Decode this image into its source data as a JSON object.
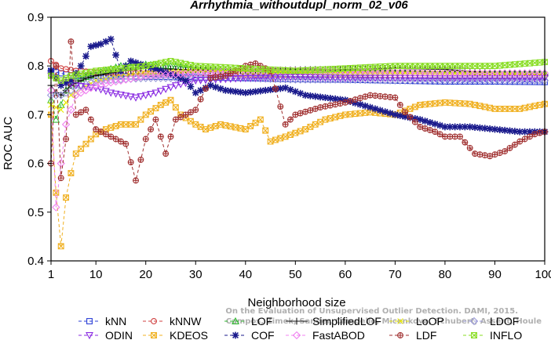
{
  "chart_data": {
    "type": "line",
    "title": "Arrhythmia_withoutdupl_norm_02_v06",
    "xlabel": "Neighborhood size",
    "ylabel": "ROC AUC",
    "xlim": [
      1,
      100
    ],
    "ylim": [
      0.4,
      0.9
    ],
    "xticks": [
      1,
      10,
      20,
      30,
      40,
      50,
      60,
      70,
      80,
      90,
      100
    ],
    "yticks": [
      0.4,
      0.5,
      0.6,
      0.7,
      0.8,
      0.9
    ],
    "grid": false,
    "legend_position": "bottom",
    "watermark": [
      "Campos, Zimek, Sander, Campello, Micenkova, Schubert, Assent, Houle",
      "On the Evaluation of Unsupervised Outlier Detection. DAMI, 2015."
    ],
    "series": [
      {
        "name": "kNN",
        "color": "#2b3fd6",
        "marker": "square",
        "dash": "4,3",
        "keypoints": [
          [
            1,
            0.79
          ],
          [
            3,
            0.785
          ],
          [
            5,
            0.78
          ],
          [
            10,
            0.78
          ],
          [
            20,
            0.778
          ],
          [
            30,
            0.777
          ],
          [
            40,
            0.775
          ],
          [
            50,
            0.773
          ],
          [
            60,
            0.772
          ],
          [
            70,
            0.77
          ],
          [
            80,
            0.768
          ],
          [
            90,
            0.768
          ],
          [
            100,
            0.767
          ]
        ]
      },
      {
        "name": "kNNW",
        "color": "#d04040",
        "marker": "circle",
        "dash": "4,3",
        "keypoints": [
          [
            1,
            0.81
          ],
          [
            3,
            0.795
          ],
          [
            6,
            0.79
          ],
          [
            10,
            0.787
          ],
          [
            20,
            0.785
          ],
          [
            30,
            0.785
          ],
          [
            40,
            0.783
          ],
          [
            50,
            0.782
          ],
          [
            60,
            0.782
          ],
          [
            70,
            0.781
          ],
          [
            80,
            0.78
          ],
          [
            90,
            0.78
          ],
          [
            100,
            0.78
          ]
        ]
      },
      {
        "name": "LOF",
        "color": "#33bb33",
        "marker": "triangle",
        "dash": "4,3",
        "keypoints": [
          [
            1,
            0.73
          ],
          [
            2,
            0.69
          ],
          [
            3,
            0.72
          ],
          [
            4,
            0.75
          ],
          [
            6,
            0.77
          ],
          [
            10,
            0.785
          ],
          [
            15,
            0.8
          ],
          [
            20,
            0.803
          ],
          [
            25,
            0.8
          ],
          [
            30,
            0.795
          ],
          [
            40,
            0.79
          ],
          [
            50,
            0.79
          ],
          [
            60,
            0.788
          ],
          [
            70,
            0.787
          ],
          [
            80,
            0.785
          ],
          [
            90,
            0.785
          ],
          [
            100,
            0.785
          ]
        ]
      },
      {
        "name": "SimplifiedLOF",
        "color": "#111111",
        "marker": "plus",
        "dash": "none",
        "keypoints": [
          [
            1,
            0.76
          ],
          [
            2,
            0.745
          ],
          [
            3,
            0.74
          ],
          [
            5,
            0.76
          ],
          [
            8,
            0.775
          ],
          [
            10,
            0.78
          ],
          [
            15,
            0.79
          ],
          [
            20,
            0.795
          ],
          [
            30,
            0.792
          ],
          [
            40,
            0.79
          ],
          [
            50,
            0.792
          ],
          [
            60,
            0.793
          ],
          [
            70,
            0.795
          ],
          [
            80,
            0.793
          ],
          [
            90,
            0.785
          ],
          [
            100,
            0.782
          ]
        ]
      },
      {
        "name": "LoOP",
        "color": "#e8e800",
        "marker": "x",
        "dash": "4,3",
        "keypoints": [
          [
            1,
            0.72
          ],
          [
            3,
            0.71
          ],
          [
            5,
            0.74
          ],
          [
            10,
            0.77
          ],
          [
            20,
            0.785
          ],
          [
            30,
            0.79
          ],
          [
            40,
            0.79
          ],
          [
            50,
            0.788
          ],
          [
            60,
            0.787
          ],
          [
            70,
            0.786
          ],
          [
            80,
            0.785
          ],
          [
            90,
            0.784
          ],
          [
            100,
            0.783
          ]
        ]
      },
      {
        "name": "LDOF",
        "color": "#9a9ad8",
        "marker": "diamond",
        "dash": "4,3",
        "keypoints": [
          [
            1,
            0.74
          ],
          [
            3,
            0.74
          ],
          [
            5,
            0.75
          ],
          [
            10,
            0.77
          ],
          [
            20,
            0.775
          ],
          [
            30,
            0.775
          ],
          [
            40,
            0.775
          ],
          [
            50,
            0.772
          ],
          [
            60,
            0.772
          ],
          [
            70,
            0.77
          ],
          [
            80,
            0.77
          ],
          [
            90,
            0.77
          ],
          [
            100,
            0.77
          ]
        ]
      },
      {
        "name": "ODIN",
        "color": "#8a2be2",
        "marker": "invtriangle",
        "dash": "4,3",
        "keypoints": [
          [
            1,
            0.78
          ],
          [
            3,
            0.77
          ],
          [
            6,
            0.76
          ],
          [
            10,
            0.755
          ],
          [
            13,
            0.745
          ],
          [
            18,
            0.735
          ],
          [
            22,
            0.745
          ],
          [
            26,
            0.76
          ],
          [
            30,
            0.77
          ],
          [
            40,
            0.775
          ],
          [
            50,
            0.777
          ],
          [
            60,
            0.775
          ],
          [
            70,
            0.775
          ],
          [
            80,
            0.775
          ],
          [
            90,
            0.775
          ],
          [
            100,
            0.775
          ]
        ]
      },
      {
        "name": "KDEOS",
        "color": "#f0b020",
        "marker": "squarex",
        "dash": "4,3",
        "keypoints": [
          [
            1,
            0.7
          ],
          [
            2,
            0.54
          ],
          [
            3,
            0.43
          ],
          [
            4,
            0.53
          ],
          [
            5,
            0.58
          ],
          [
            6,
            0.62
          ],
          [
            8,
            0.64
          ],
          [
            10,
            0.66
          ],
          [
            12,
            0.67
          ],
          [
            15,
            0.68
          ],
          [
            18,
            0.68
          ],
          [
            20,
            0.7
          ],
          [
            23,
            0.72
          ],
          [
            25,
            0.73
          ],
          [
            27,
            0.7
          ],
          [
            30,
            0.68
          ],
          [
            32,
            0.67
          ],
          [
            35,
            0.68
          ],
          [
            40,
            0.67
          ],
          [
            43,
            0.69
          ],
          [
            45,
            0.645
          ],
          [
            48,
            0.655
          ],
          [
            52,
            0.67
          ],
          [
            56,
            0.69
          ],
          [
            60,
            0.7
          ],
          [
            65,
            0.705
          ],
          [
            70,
            0.7
          ],
          [
            75,
            0.72
          ],
          [
            80,
            0.725
          ],
          [
            85,
            0.722
          ],
          [
            90,
            0.712
          ],
          [
            95,
            0.712
          ],
          [
            100,
            0.722
          ]
        ]
      },
      {
        "name": "COF",
        "color": "#1a1a8c",
        "marker": "star",
        "dash": "4,3",
        "keypoints": [
          [
            1,
            0.79
          ],
          [
            3,
            0.76
          ],
          [
            5,
            0.77
          ],
          [
            7,
            0.8
          ],
          [
            9,
            0.84
          ],
          [
            11,
            0.845
          ],
          [
            13,
            0.855
          ],
          [
            15,
            0.79
          ],
          [
            17,
            0.81
          ],
          [
            20,
            0.8
          ],
          [
            23,
            0.79
          ],
          [
            26,
            0.78
          ],
          [
            28,
            0.77
          ],
          [
            30,
            0.745
          ],
          [
            33,
            0.76
          ],
          [
            36,
            0.75
          ],
          [
            40,
            0.745
          ],
          [
            44,
            0.75
          ],
          [
            48,
            0.755
          ],
          [
            52,
            0.74
          ],
          [
            56,
            0.735
          ],
          [
            60,
            0.73
          ],
          [
            65,
            0.715
          ],
          [
            70,
            0.7
          ],
          [
            75,
            0.69
          ],
          [
            80,
            0.675
          ],
          [
            85,
            0.675
          ],
          [
            90,
            0.67
          ],
          [
            95,
            0.665
          ],
          [
            100,
            0.665
          ]
        ]
      },
      {
        "name": "FastABOD",
        "color": "#f080f0",
        "marker": "diamond",
        "dash": "4,3",
        "keypoints": [
          [
            1,
            0.75
          ],
          [
            2,
            0.51
          ],
          [
            3,
            0.6
          ],
          [
            4,
            0.68
          ],
          [
            6,
            0.74
          ],
          [
            10,
            0.76
          ],
          [
            15,
            0.77
          ],
          [
            20,
            0.78
          ],
          [
            30,
            0.785
          ],
          [
            40,
            0.79
          ],
          [
            50,
            0.79
          ],
          [
            60,
            0.788
          ],
          [
            70,
            0.787
          ],
          [
            80,
            0.785
          ],
          [
            90,
            0.785
          ],
          [
            100,
            0.785
          ]
        ]
      },
      {
        "name": "LDF",
        "color": "#a03030",
        "marker": "circleplus",
        "dash": "4,3",
        "keypoints": [
          [
            1,
            0.6
          ],
          [
            2,
            0.8
          ],
          [
            3,
            0.57
          ],
          [
            4,
            0.65
          ],
          [
            5,
            0.85
          ],
          [
            6,
            0.7
          ],
          [
            8,
            0.71
          ],
          [
            10,
            0.67
          ],
          [
            12,
            0.66
          ],
          [
            14,
            0.65
          ],
          [
            16,
            0.64
          ],
          [
            18,
            0.565
          ],
          [
            20,
            0.65
          ],
          [
            22,
            0.69
          ],
          [
            24,
            0.62
          ],
          [
            26,
            0.69
          ],
          [
            28,
            0.7
          ],
          [
            30,
            0.71
          ],
          [
            33,
            0.775
          ],
          [
            36,
            0.78
          ],
          [
            40,
            0.8
          ],
          [
            42,
            0.805
          ],
          [
            45,
            0.79
          ],
          [
            48,
            0.68
          ],
          [
            50,
            0.7
          ],
          [
            55,
            0.715
          ],
          [
            60,
            0.725
          ],
          [
            65,
            0.74
          ],
          [
            70,
            0.735
          ],
          [
            72,
            0.705
          ],
          [
            75,
            0.675
          ],
          [
            78,
            0.665
          ],
          [
            80,
            0.655
          ],
          [
            83,
            0.655
          ],
          [
            86,
            0.62
          ],
          [
            89,
            0.615
          ],
          [
            92,
            0.625
          ],
          [
            95,
            0.645
          ],
          [
            98,
            0.66
          ],
          [
            100,
            0.665
          ]
        ]
      },
      {
        "name": "INFLO",
        "color": "#88dd22",
        "marker": "squarex",
        "dash": "4,3",
        "keypoints": [
          [
            1,
            0.78
          ],
          [
            3,
            0.77
          ],
          [
            5,
            0.78
          ],
          [
            10,
            0.79
          ],
          [
            20,
            0.8
          ],
          [
            25,
            0.81
          ],
          [
            30,
            0.8
          ],
          [
            40,
            0.795
          ],
          [
            50,
            0.79
          ],
          [
            60,
            0.795
          ],
          [
            70,
            0.8
          ],
          [
            80,
            0.8
          ],
          [
            90,
            0.8
          ],
          [
            100,
            0.808
          ]
        ]
      }
    ]
  }
}
